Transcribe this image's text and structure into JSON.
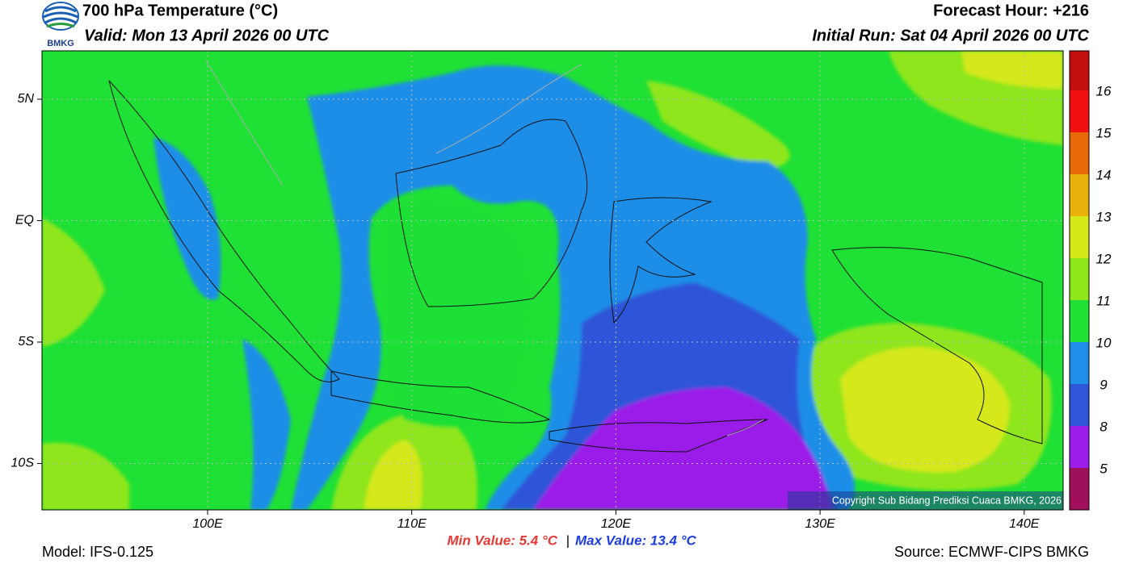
{
  "header": {
    "title": "700 hPa Temperature (°C)",
    "valid": "Valid: Mon 13 April 2026 00 UTC",
    "forecast_hour": "Forecast Hour: +216",
    "initial_run": "Initial Run: Sat 04 April 2026 00 UTC",
    "logo_text": "BMKG"
  },
  "map": {
    "lat_labels": [
      "5N",
      "EQ",
      "5S",
      "10S"
    ],
    "lon_labels": [
      "100E",
      "110E",
      "120E",
      "130E",
      "140E"
    ],
    "copyright": "Copyright Sub Bidang Prediksi Cuaca BMKG, 2026"
  },
  "colorbar": {
    "colors": [
      "#a0105a",
      "#9b1ce8",
      "#2f55d8",
      "#1f8ee8",
      "#1fe035",
      "#8fe61a",
      "#d4e81a",
      "#e8b20a",
      "#e8690a",
      "#f01010",
      "#c40f0f"
    ],
    "labels": [
      "5",
      "8",
      "9",
      "10",
      "11",
      "12",
      "13",
      "14",
      "15",
      "16"
    ]
  },
  "footer": {
    "model": "Model: IFS-0.125",
    "min_value": "Min Value: 5.4 °C",
    "separator": "|",
    "max_value": "Max Value: 13.4 °C",
    "source": "Source: ECMWF-CIPS BMKG"
  }
}
